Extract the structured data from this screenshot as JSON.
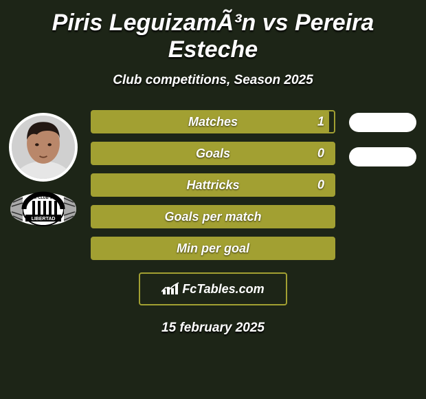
{
  "colors": {
    "background": "#1d2517",
    "accent": "#a2a032",
    "text": "#ffffff",
    "pill": "#ffffff"
  },
  "title": "Piris LeguizamÃ³n vs Pereira Esteche",
  "subtitle": "Club competitions, Season 2025",
  "player_left": {
    "avatar": {
      "skin": "#b9876a",
      "hair": "#231813",
      "shirt": "#e6e6e6",
      "bg": "#d0d0d0"
    },
    "club_badge": {
      "name": "Club Libertad",
      "colors": [
        "#000000",
        "#ffffff",
        "#888888"
      ]
    }
  },
  "stats": [
    {
      "label": "Matches",
      "left_value": "1",
      "fill_pct": 98,
      "show_value": true,
      "right_pill": true
    },
    {
      "label": "Goals",
      "left_value": "0",
      "fill_pct": 100,
      "show_value": true,
      "right_pill": true
    },
    {
      "label": "Hattricks",
      "left_value": "0",
      "fill_pct": 100,
      "show_value": true,
      "right_pill": false
    },
    {
      "label": "Goals per match",
      "left_value": "",
      "fill_pct": 100,
      "show_value": false,
      "right_pill": false
    },
    {
      "label": "Min per goal",
      "left_value": "",
      "fill_pct": 100,
      "show_value": false,
      "right_pill": false
    }
  ],
  "brand": {
    "text": "FcTables.com"
  },
  "date": "15 february 2025"
}
